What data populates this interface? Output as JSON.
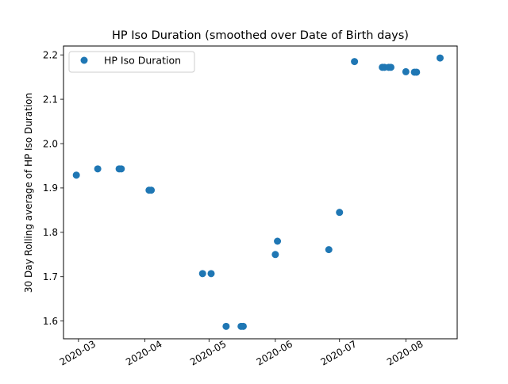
{
  "chart_data": {
    "type": "scatter",
    "title": "HP Iso Duration (smoothed over Date of Birth days)",
    "xlabel": "",
    "ylabel": "30 Day Rolling average of HP Iso Duration",
    "xlim": [
      "2020-02-23",
      "2020-08-25"
    ],
    "ylim": [
      1.56,
      2.22
    ],
    "x_ticks": [
      "2020-03-01",
      "2020-04-01",
      "2020-05-01",
      "2020-06-01",
      "2020-07-01",
      "2020-08-01"
    ],
    "x_tick_labels": [
      "2020-03",
      "2020-04",
      "2020-05",
      "2020-06",
      "2020-07",
      "2020-08"
    ],
    "y_ticks": [
      1.6,
      1.7,
      1.8,
      1.9,
      2.0,
      2.1,
      2.2
    ],
    "y_tick_labels": [
      "1.6",
      "1.7",
      "1.8",
      "1.9",
      "2.0",
      "2.1",
      "2.2"
    ],
    "grid": false,
    "legend_position": "top-left",
    "series": [
      {
        "name": "HP Iso Duration",
        "color": "#1f77b4",
        "points": [
          {
            "x": "2020-02-29",
            "y": 1.929
          },
          {
            "x": "2020-03-10",
            "y": 1.943
          },
          {
            "x": "2020-03-20",
            "y": 1.943
          },
          {
            "x": "2020-03-21",
            "y": 1.943
          },
          {
            "x": "2020-04-03",
            "y": 1.895
          },
          {
            "x": "2020-04-04",
            "y": 1.895
          },
          {
            "x": "2020-04-28",
            "y": 1.707
          },
          {
            "x": "2020-05-02",
            "y": 1.707
          },
          {
            "x": "2020-05-09",
            "y": 1.588
          },
          {
            "x": "2020-05-16",
            "y": 1.588
          },
          {
            "x": "2020-05-17",
            "y": 1.588
          },
          {
            "x": "2020-06-01",
            "y": 1.75
          },
          {
            "x": "2020-06-02",
            "y": 1.78
          },
          {
            "x": "2020-06-26",
            "y": 1.761
          },
          {
            "x": "2020-07-01",
            "y": 1.845
          },
          {
            "x": "2020-07-08",
            "y": 2.185
          },
          {
            "x": "2020-07-21",
            "y": 2.172
          },
          {
            "x": "2020-07-22",
            "y": 2.172
          },
          {
            "x": "2020-07-24",
            "y": 2.172
          },
          {
            "x": "2020-07-25",
            "y": 2.172
          },
          {
            "x": "2020-08-01",
            "y": 2.162
          },
          {
            "x": "2020-08-05",
            "y": 2.161
          },
          {
            "x": "2020-08-06",
            "y": 2.161
          },
          {
            "x": "2020-08-17",
            "y": 2.193
          }
        ]
      }
    ]
  }
}
